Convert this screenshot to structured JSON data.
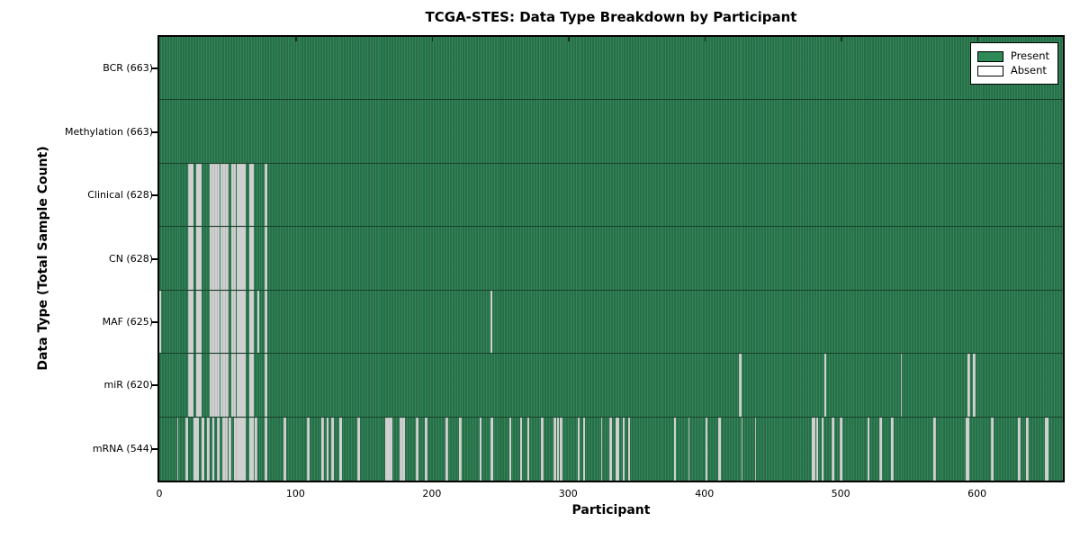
{
  "title": "TCGA-STES: Data Type Breakdown by Participant",
  "colors": {
    "present": "#2E8B57",
    "absent": "#FFFFFF",
    "axis": "#000000",
    "background": "#FFFFFF"
  },
  "legend": {
    "present_label": "Present",
    "absent_label": "Absent"
  },
  "chart_data": {
    "type": "heatmap",
    "title": "TCGA-STES: Data Type Breakdown by Participant",
    "xlabel": "Participant",
    "ylabel": "Data Type (Total Sample Count)",
    "x_range": [
      0,
      663
    ],
    "x_ticks": [
      0,
      100,
      200,
      300,
      400,
      500,
      600
    ],
    "total_participants": 663,
    "grid": false,
    "legend_position": "upper right",
    "legend": [
      {
        "label": "Present",
        "color": "#2E8B57"
      },
      {
        "label": "Absent",
        "color": "#FFFFFF"
      }
    ],
    "rows": [
      {
        "label": "BCR (663)",
        "name": "BCR",
        "present_count": 663,
        "absent_count": 0,
        "absent": []
      },
      {
        "label": "Methylation (663)",
        "name": "Methylation",
        "present_count": 663,
        "absent_count": 0,
        "absent": []
      },
      {
        "label": "Clinical (628)",
        "name": "Clinical",
        "present_count": 628,
        "absent_count": 35,
        "absent": [
          21,
          22,
          23,
          24,
          27,
          28,
          29,
          30,
          37,
          38,
          39,
          40,
          41,
          42,
          43,
          45,
          46,
          47,
          48,
          49,
          50,
          53,
          54,
          55,
          57,
          58,
          59,
          60,
          61,
          62,
          66,
          67,
          68,
          77,
          78
        ]
      },
      {
        "label": "CN (628)",
        "name": "CN",
        "present_count": 628,
        "absent_count": 35,
        "absent": [
          21,
          22,
          23,
          24,
          27,
          28,
          29,
          30,
          37,
          38,
          39,
          40,
          41,
          42,
          43,
          45,
          46,
          47,
          48,
          49,
          50,
          53,
          54,
          55,
          57,
          58,
          59,
          60,
          61,
          62,
          66,
          67,
          68,
          77,
          78
        ]
      },
      {
        "label": "MAF (625)",
        "name": "MAF",
        "present_count": 625,
        "absent_count": 38,
        "absent": [
          0,
          21,
          22,
          23,
          24,
          27,
          28,
          29,
          30,
          37,
          38,
          39,
          40,
          41,
          42,
          43,
          45,
          46,
          47,
          48,
          49,
          50,
          53,
          54,
          55,
          57,
          58,
          59,
          60,
          61,
          62,
          66,
          67,
          68,
          72,
          77,
          78,
          243
        ]
      },
      {
        "label": "miR (620)",
        "name": "miR",
        "present_count": 620,
        "absent_count": 43,
        "absent": [
          21,
          22,
          23,
          24,
          27,
          28,
          29,
          30,
          37,
          38,
          39,
          40,
          41,
          42,
          43,
          45,
          46,
          47,
          48,
          49,
          50,
          53,
          54,
          55,
          57,
          58,
          59,
          60,
          61,
          62,
          66,
          67,
          68,
          77,
          78,
          425,
          426,
          488,
          544,
          593,
          594,
          597,
          598
        ]
      },
      {
        "label": "mRNA (544)",
        "name": "mRNA",
        "present_count": 544,
        "absent_count": 119,
        "absent": [
          13,
          19,
          20,
          25,
          26,
          27,
          28,
          31,
          32,
          35,
          36,
          39,
          42,
          43,
          46,
          47,
          48,
          49,
          51,
          52,
          55,
          56,
          57,
          58,
          59,
          60,
          61,
          62,
          66,
          67,
          68,
          70,
          71,
          77,
          78,
          91,
          92,
          108,
          109,
          119,
          120,
          123,
          126,
          127,
          132,
          133,
          145,
          146,
          166,
          167,
          168,
          169,
          170,
          176,
          177,
          178,
          179,
          188,
          189,
          195,
          196,
          210,
          211,
          220,
          221,
          235,
          243,
          244,
          257,
          265,
          270,
          280,
          281,
          289,
          290,
          292,
          294,
          295,
          307,
          311,
          324,
          330,
          331,
          335,
          336,
          340,
          344,
          378,
          388,
          401,
          410,
          411,
          427,
          437,
          479,
          480,
          482,
          486,
          493,
          494,
          499,
          500,
          520,
          528,
          529,
          537,
          538,
          568,
          569,
          592,
          593,
          610,
          611,
          630,
          631,
          636,
          637,
          650,
          651
        ]
      }
    ]
  }
}
